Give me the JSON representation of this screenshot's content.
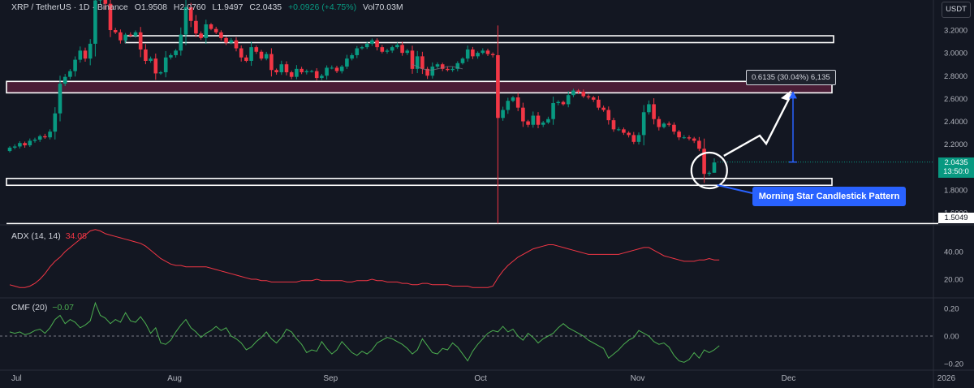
{
  "header": {
    "symbol": "XRP / TetherUS · 1D · Binance",
    "open": "O1.9508",
    "high": "H2.0760",
    "low": "L1.9497",
    "close": "C2.0435",
    "change": "+0.0926 (+4.75%)",
    "volume": "Vol70.03M"
  },
  "currency_button": "USDT",
  "last_price": {
    "value": "2.0435",
    "countdown": "13:50:0",
    "color": "#089981"
  },
  "support_marker": "1.5049",
  "measure_label": "0.6135 (30.04%) 6,135",
  "annotation": "Morning Star Candlestick Pattern",
  "colors": {
    "up": "#089981",
    "down": "#f23645",
    "adx": "#f23645",
    "cmf": "#4caf50",
    "callout": "#2962ff",
    "zone": "#4a1d36"
  },
  "chart_data": [
    {
      "type": "candlestick",
      "title": "XRP / TetherUS · 1D · Binance",
      "x_labels": [
        "Jul",
        "Aug",
        "Sep",
        "Oct",
        "Nov",
        "Dec",
        "2026"
      ],
      "x_label_days": [
        0,
        31,
        62,
        92,
        123,
        153,
        184
      ],
      "y_ticks": [
        "3.2000",
        "3.0000",
        "2.8000",
        "2.6000",
        "2.4000",
        "2.2000",
        "1.8000",
        "1.6000"
      ],
      "y_tick_values": [
        3.2,
        3.0,
        2.8,
        2.6,
        2.4,
        2.2,
        1.8,
        1.6
      ],
      "ylim": [
        1.495,
        3.36
      ],
      "close": [
        2.17,
        2.18,
        2.21,
        2.19,
        2.23,
        2.24,
        2.27,
        2.26,
        2.31,
        2.47,
        2.73,
        2.79,
        2.84,
        2.94,
        3.02,
        2.95,
        3.08,
        3.46,
        3.55,
        3.43,
        3.2,
        3.18,
        3.11,
        3.16,
        3.15,
        3.18,
        3.03,
        2.93,
        2.95,
        2.82,
        2.83,
        2.96,
        2.98,
        3.02,
        3.16,
        3.4,
        3.28,
        3.17,
        3.13,
        3.25,
        3.21,
        3.18,
        3.13,
        3.09,
        3.11,
        3.04,
        2.96,
        2.93,
        3.05,
        3.01,
        2.95,
        2.99,
        2.85,
        2.83,
        2.9,
        2.83,
        2.79,
        2.86,
        2.83,
        2.84,
        2.84,
        2.78,
        2.8,
        2.87,
        2.87,
        2.84,
        2.88,
        2.95,
        2.98,
        3.04,
        3.05,
        3.08,
        3.11,
        3.05,
        3.01,
        3.02,
        3.05,
        3.07,
        3.0,
        3.02,
        2.86,
        2.97,
        2.86,
        2.8,
        2.88,
        2.9,
        2.86,
        2.85,
        2.86,
        2.91,
        2.95,
        3.03,
        2.97,
        3.0,
        3.02,
        2.99,
        2.98,
        2.43,
        2.5,
        2.58,
        2.61,
        2.52,
        2.4,
        2.37,
        2.45,
        2.37,
        2.39,
        2.42,
        2.56,
        2.57,
        2.55,
        2.63,
        2.67,
        2.66,
        2.62,
        2.61,
        2.59,
        2.52,
        2.5,
        2.41,
        2.33,
        2.33,
        2.3,
        2.28,
        2.22,
        2.28,
        2.48,
        2.55,
        2.42,
        2.35,
        2.38,
        2.37,
        2.31,
        2.26,
        2.26,
        2.25,
        2.23,
        2.16,
        1.94,
        1.95,
        2.04
      ],
      "ma": {
        "start": 80,
        "values": [
          2.9,
          2.88,
          2.86,
          2.85,
          2.85,
          2.86,
          2.87,
          2.88,
          2.88,
          2.87,
          2.86
        ]
      }
    },
    {
      "type": "line",
      "title": "ADX (14, 14)",
      "series": [
        {
          "name": "ADX (14, 14)",
          "last_value": "34.08"
        }
      ],
      "y_ticks": [
        "40.00",
        "20.00"
      ],
      "y_tick_values": [
        40,
        20
      ],
      "ylim": [
        10,
        60
      ],
      "values": [
        16,
        15,
        14,
        14,
        15,
        17,
        20,
        24,
        29,
        33,
        36,
        40,
        43,
        46,
        49,
        52,
        55,
        56,
        55,
        53,
        52,
        51,
        50,
        49,
        48,
        47,
        46,
        44,
        41,
        38,
        35,
        33,
        31,
        30,
        30,
        29,
        29,
        29,
        29,
        29,
        28,
        27,
        26,
        25,
        24,
        23,
        22,
        21,
        20,
        20,
        19,
        19,
        18,
        18,
        18,
        18,
        18,
        18,
        19,
        19,
        19,
        20,
        19,
        19,
        19,
        19,
        19,
        18,
        18,
        19,
        19,
        19,
        20,
        19,
        19,
        18,
        18,
        18,
        17,
        17,
        16,
        16,
        17,
        17,
        16,
        16,
        16,
        16,
        15,
        15,
        15,
        15,
        14,
        14,
        14,
        14,
        15,
        21,
        26,
        30,
        33,
        36,
        38,
        40,
        42,
        43,
        44,
        45,
        45,
        44,
        43,
        42,
        41,
        40,
        39,
        38,
        38,
        38,
        38,
        38,
        38,
        38,
        39,
        40,
        41,
        42,
        43,
        43,
        41,
        39,
        37,
        36,
        35,
        34,
        33,
        33,
        33,
        34,
        34,
        35,
        34,
        34
      ]
    },
    {
      "type": "line",
      "title": "CMF (20)",
      "series": [
        {
          "name": "CMF (20)",
          "last_value": "−0.07"
        }
      ],
      "y_ticks": [
        "0.20",
        "0.00",
        "−0.20"
      ],
      "y_tick_values": [
        0.2,
        0.0,
        -0.2
      ],
      "ylim": [
        -0.3,
        0.3
      ],
      "values": [
        0.03,
        0.02,
        0.03,
        0.01,
        0.02,
        0.04,
        0.05,
        0.02,
        0.06,
        0.12,
        0.15,
        0.09,
        0.12,
        0.1,
        0.06,
        0.08,
        0.11,
        0.24,
        0.15,
        0.13,
        0.09,
        0.12,
        0.1,
        0.17,
        0.11,
        0.1,
        0.14,
        0.09,
        0.02,
        0.06,
        -0.05,
        -0.06,
        -0.03,
        0.03,
        0.08,
        0.12,
        0.06,
        0.03,
        -0.01,
        0.02,
        0.04,
        0.07,
        0.04,
        0.06,
        0.0,
        -0.02,
        -0.05,
        -0.1,
        -0.08,
        -0.04,
        -0.01,
        0.03,
        -0.02,
        -0.05,
        -0.01,
        0.05,
        0.03,
        -0.02,
        -0.06,
        -0.12,
        -0.1,
        -0.11,
        -0.04,
        -0.09,
        -0.13,
        -0.1,
        -0.04,
        -0.08,
        -0.12,
        -0.14,
        -0.11,
        -0.13,
        -0.1,
        -0.05,
        -0.03,
        -0.01,
        -0.02,
        -0.04,
        -0.06,
        -0.09,
        -0.13,
        -0.1,
        -0.02,
        -0.07,
        -0.12,
        -0.13,
        -0.09,
        -0.1,
        -0.05,
        -0.08,
        -0.13,
        -0.18,
        -0.11,
        -0.06,
        -0.02,
        0.02,
        0.04,
        0.03,
        0.07,
        0.03,
        0.05,
        0.0,
        -0.03,
        0.02,
        -0.01,
        -0.05,
        -0.02,
        0.0,
        0.02,
        0.06,
        0.09,
        0.06,
        0.04,
        0.02,
        0.0,
        -0.03,
        -0.05,
        -0.07,
        -0.09,
        -0.16,
        -0.13,
        -0.1,
        -0.06,
        -0.03,
        -0.01,
        0.04,
        0.02,
        0.0,
        -0.04,
        -0.06,
        -0.05,
        -0.08,
        -0.14,
        -0.18,
        -0.19,
        -0.17,
        -0.12,
        -0.16,
        -0.1,
        -0.12,
        -0.1,
        -0.07
      ]
    }
  ]
}
